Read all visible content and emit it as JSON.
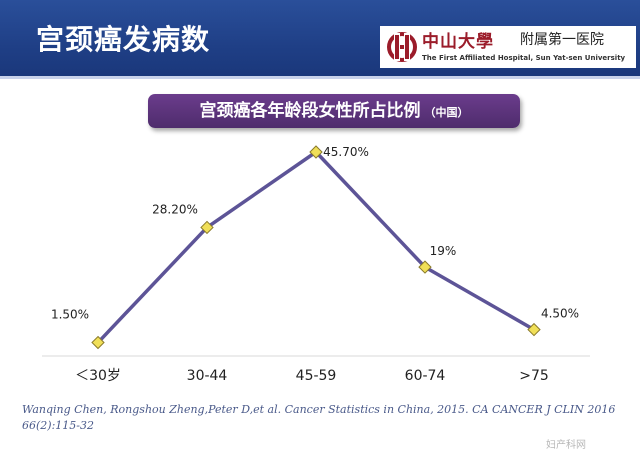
{
  "header": {
    "title": "宫颈癌发病数",
    "logo_school": "中山大學",
    "logo_hospital": "附属第一医院",
    "logo_subtitle": "The First Affiliated Hospital, Sun Yat-sen University"
  },
  "subtitle": {
    "main": "宫颈癌各年龄段女性所占比例",
    "note": "（中国）"
  },
  "chart_data": {
    "type": "line",
    "title": "宫颈癌各年龄段女性所占比例（中国）",
    "categories": [
      "＜30岁",
      "30-44",
      "45-59",
      "60-74",
      ">75"
    ],
    "values": [
      1.5,
      28.2,
      45.7,
      19,
      4.5
    ],
    "data_labels": [
      "1.50%",
      "28.20%",
      "45.70%",
      "19%",
      "4.50%"
    ],
    "ylim": [
      0,
      50
    ],
    "grid": false,
    "legend": "none",
    "line_color": "#5d5497",
    "marker_fill": "#f0df58",
    "marker_stroke": "#8a7a2a",
    "axis_color": "#d8d8d8"
  },
  "citation": "Wanqing Chen, Rongshou Zheng,Peter D,et al. Cancer Statistics in China, 2015. CA CANCER J CLIN 2016 66(2):115-32",
  "watermark": "妇产科网"
}
